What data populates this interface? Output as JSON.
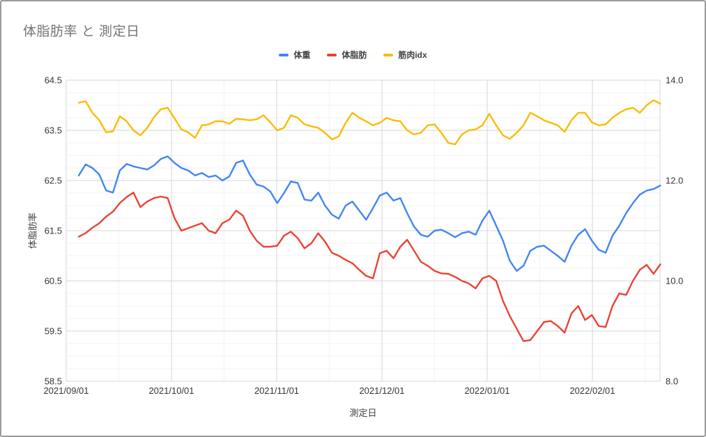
{
  "chart_data": {
    "type": "line",
    "title": "体脂肪率 と 測定日",
    "xlabel": "測定日",
    "ylabel": "体脂肪率",
    "legend_position": "top",
    "grid": true,
    "x_ticks": [
      "2021/09/01",
      "2021/10/01",
      "2021/11/01",
      "2021/12/01",
      "2022/01/01",
      "2022/02/01"
    ],
    "left_axis": {
      "min": 58.5,
      "max": 64.5,
      "major_step": 1.0,
      "minor_step": 0.25,
      "tick_labels": [
        "58.5",
        "59.5",
        "60.5",
        "61.5",
        "62.5",
        "63.5",
        "64.5"
      ]
    },
    "right_axis": {
      "min": 8.0,
      "max": 14.0,
      "major_step": 2.0,
      "tick_labels": [
        "8.0",
        "10.0",
        "12.0",
        "14.0"
      ]
    },
    "sampling": {
      "start_date": "2021/09/04",
      "step_days": 2,
      "end_date": "2022/02/21",
      "value_axis": "left"
    },
    "series": [
      {
        "name": "体重",
        "color": "#4285F4",
        "values": [
          62.6,
          62.82,
          62.75,
          62.62,
          62.3,
          62.26,
          62.7,
          62.83,
          62.78,
          62.75,
          62.72,
          62.8,
          62.93,
          62.98,
          62.85,
          62.75,
          62.7,
          62.6,
          62.65,
          62.57,
          62.6,
          62.5,
          62.58,
          62.85,
          62.9,
          62.62,
          62.42,
          62.38,
          62.28,
          62.05,
          62.25,
          62.48,
          62.45,
          62.12,
          62.1,
          62.26,
          62.0,
          61.82,
          61.74,
          62.0,
          62.08,
          61.9,
          61.72,
          61.95,
          62.2,
          62.26,
          62.1,
          62.15,
          61.85,
          61.58,
          61.42,
          61.38,
          61.5,
          61.52,
          61.45,
          61.37,
          61.45,
          61.48,
          61.42,
          61.7,
          61.9,
          61.6,
          61.3,
          60.9,
          60.7,
          60.8,
          61.1,
          61.18,
          61.2,
          61.1,
          61.0,
          60.88,
          61.2,
          61.42,
          61.53,
          61.3,
          61.12,
          61.06,
          61.4,
          61.6,
          61.85,
          62.05,
          62.22,
          62.3,
          62.33,
          62.4
        ]
      },
      {
        "name": "体脂肪",
        "color": "#EA4335",
        "values": [
          61.38,
          61.45,
          61.56,
          61.65,
          61.78,
          61.88,
          62.05,
          62.17,
          62.26,
          61.97,
          62.08,
          62.15,
          62.18,
          62.15,
          61.75,
          61.5,
          61.55,
          61.6,
          61.65,
          61.5,
          61.45,
          61.65,
          61.72,
          61.9,
          61.8,
          61.5,
          61.3,
          61.18,
          61.18,
          61.2,
          61.4,
          61.48,
          61.35,
          61.15,
          61.25,
          61.45,
          61.28,
          61.06,
          61.0,
          60.92,
          60.85,
          60.72,
          60.6,
          60.55,
          61.05,
          61.1,
          60.95,
          61.18,
          61.32,
          61.1,
          60.88,
          60.8,
          60.7,
          60.65,
          60.64,
          60.58,
          60.5,
          60.45,
          60.35,
          60.55,
          60.6,
          60.5,
          60.1,
          59.8,
          59.55,
          59.3,
          59.32,
          59.5,
          59.68,
          59.7,
          59.6,
          59.47,
          59.85,
          60.0,
          59.72,
          59.82,
          59.6,
          59.58,
          60.0,
          60.25,
          60.22,
          60.5,
          60.72,
          60.82,
          60.64,
          60.83
        ]
      },
      {
        "name": "筋肉idx",
        "color": "#FBBC04",
        "values": [
          64.05,
          64.08,
          63.85,
          63.7,
          63.46,
          63.48,
          63.78,
          63.68,
          63.5,
          63.4,
          63.55,
          63.76,
          63.92,
          63.95,
          63.74,
          63.52,
          63.46,
          63.35,
          63.6,
          63.62,
          63.68,
          63.68,
          63.63,
          63.73,
          63.72,
          63.7,
          63.72,
          63.8,
          63.66,
          63.5,
          63.55,
          63.8,
          63.75,
          63.62,
          63.58,
          63.55,
          63.45,
          63.32,
          63.38,
          63.65,
          63.85,
          63.75,
          63.68,
          63.6,
          63.65,
          63.75,
          63.7,
          63.68,
          63.5,
          63.42,
          63.45,
          63.6,
          63.62,
          63.45,
          63.25,
          63.22,
          63.42,
          63.5,
          63.52,
          63.6,
          63.83,
          63.6,
          63.4,
          63.33,
          63.45,
          63.6,
          63.85,
          63.78,
          63.7,
          63.65,
          63.6,
          63.47,
          63.7,
          63.85,
          63.85,
          63.66,
          63.6,
          63.62,
          63.75,
          63.85,
          63.92,
          63.95,
          63.85,
          64.0,
          64.1,
          64.03
        ]
      }
    ],
    "colors": {
      "title_text": "#757575",
      "tick_text": "#333333",
      "axis_title_text": "#424242",
      "major_grid": "#d6d6d6",
      "minor_grid": "#f2f2f2",
      "background": "#ffffff",
      "frame_border": "#9a9a9a"
    }
  }
}
